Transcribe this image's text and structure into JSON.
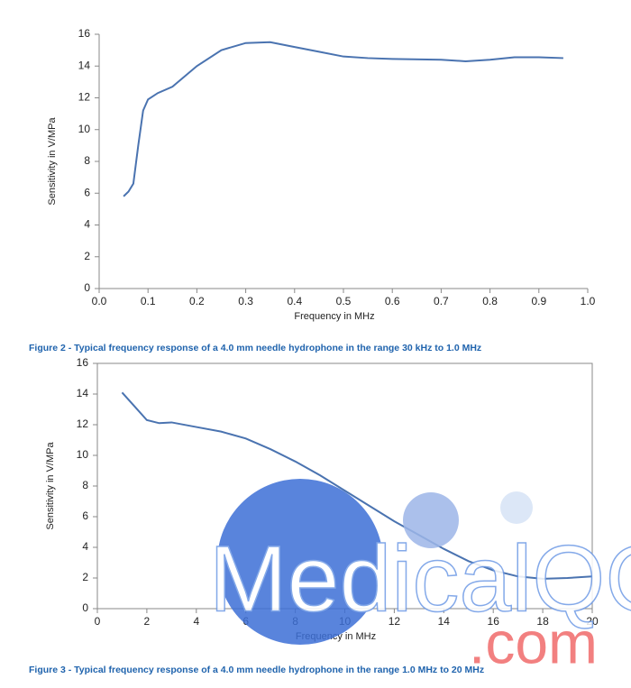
{
  "chart_data": [
    {
      "type": "line",
      "caption": "Figure 2 - Typical frequency response of a 4.0 mm needle hydrophone in the range 30 kHz to 1.0 MHz",
      "x_label": "Frequency in MHz",
      "y_label": "Sensitivity in V/MPa",
      "x": [
        0.05,
        0.06,
        0.07,
        0.08,
        0.09,
        0.1,
        0.12,
        0.15,
        0.2,
        0.25,
        0.3,
        0.35,
        0.4,
        0.45,
        0.5,
        0.55,
        0.6,
        0.7,
        0.75,
        0.8,
        0.85,
        0.9,
        0.95
      ],
      "values": [
        5.8,
        6.1,
        6.6,
        9.0,
        11.2,
        11.9,
        12.3,
        12.7,
        14.0,
        15.0,
        15.45,
        15.5,
        15.2,
        14.9,
        14.6,
        14.5,
        14.45,
        14.4,
        14.3,
        14.4,
        14.55,
        14.55,
        14.5
      ],
      "color": "#4a73b0",
      "frame": false,
      "xlim": [
        0,
        1
      ],
      "xticks": [
        {
          "value": 0,
          "label": "0.0"
        },
        0.1,
        0.2,
        0.3,
        0.4,
        0.5,
        0.6,
        0.7,
        0.8,
        0.9,
        {
          "value": 1,
          "label": "1.0"
        }
      ],
      "ylim": [
        0,
        16
      ],
      "yticks": [
        0,
        2,
        4,
        6,
        8,
        10,
        12,
        14,
        16
      ]
    },
    {
      "type": "line",
      "caption": "Figure 3 - Typical frequency response of a 4.0 mm needle hydrophone in the range 1.0 MHz to 20 MHz",
      "x_label": "Frequency in MHz",
      "y_label": "Sensitivity in V/MPa",
      "x": [
        1,
        1.5,
        2,
        2.5,
        3,
        4,
        5,
        6,
        7,
        8,
        9,
        10,
        11,
        12,
        13,
        14,
        15,
        16,
        17,
        18,
        19,
        20
      ],
      "values": [
        14.1,
        13.2,
        12.3,
        12.1,
        12.15,
        11.85,
        11.55,
        11.1,
        10.4,
        9.6,
        8.7,
        7.7,
        6.7,
        5.7,
        4.8,
        3.9,
        3.1,
        2.5,
        2.1,
        1.95,
        2.0,
        2.1
      ],
      "color": "#4a73b0",
      "frame": true,
      "xlim": [
        0,
        20
      ],
      "xticks": [
        0,
        2,
        4,
        6,
        8,
        10,
        12,
        14,
        16,
        18,
        20
      ],
      "ylim": [
        0,
        16
      ],
      "yticks": [
        0,
        2,
        4,
        6,
        8,
        10,
        12,
        14,
        16
      ]
    }
  ],
  "watermark": {
    "name": "MedicalQC",
    "domain": ".com"
  }
}
